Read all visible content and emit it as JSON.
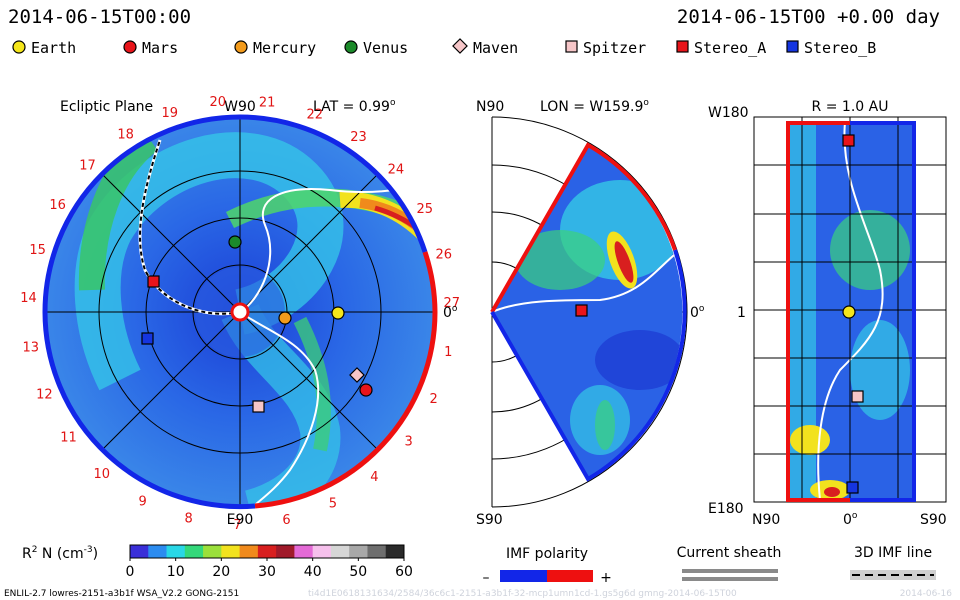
{
  "header": {
    "datetime_left": "2014-06-15T00:00",
    "datetime_right": "2014-06-15T00 +0.00 day"
  },
  "legend": [
    {
      "label": "Earth",
      "shape": "circle",
      "color": "#f5e61b"
    },
    {
      "label": "Mars",
      "shape": "circle",
      "color": "#e8141a"
    },
    {
      "label": "Mercury",
      "shape": "circle",
      "color": "#f39b1c"
    },
    {
      "label": "Venus",
      "shape": "circle",
      "color": "#1b8a2a"
    },
    {
      "label": "Maven",
      "shape": "diamond",
      "color": "#f6c6c8"
    },
    {
      "label": "Spitzer",
      "shape": "square",
      "color": "#f6c6c8"
    },
    {
      "label": "Stereo_A",
      "shape": "square",
      "color": "#e8141a"
    },
    {
      "label": "Stereo_B",
      "shape": "square",
      "color": "#1535e0"
    }
  ],
  "ecliptic": {
    "title": "Ecliptic Plane",
    "top_label": "W90",
    "lat_text": "LAT = 0.99",
    "lat_sup": "o",
    "zero_label": "0",
    "zero_sup": "o",
    "bottom_label": "E90",
    "sector_numbers": [
      "20",
      "21",
      "22",
      "23",
      "24",
      "25",
      "26",
      "27",
      "1",
      "2",
      "3",
      "4",
      "5",
      "6",
      "7",
      "8",
      "9",
      "10",
      "11",
      "12",
      "13",
      "14",
      "15",
      "16",
      "17",
      "18",
      "19"
    ]
  },
  "meridional": {
    "top_left": "N90",
    "lon_text": "LON = W159.9",
    "lon_sup": "o",
    "zero_label": "0",
    "zero_sup": "o",
    "bottom_left": "S90"
  },
  "radial": {
    "title": "R = 1.0 AU",
    "left_top": "W180",
    "left_mid": "1",
    "left_bottom": "E180",
    "bottom_left": "N90",
    "bottom_mid": "0",
    "bottom_mid_sup": "o",
    "bottom_right": "S90"
  },
  "colorbar": {
    "label_main": "R",
    "label_sup": "2",
    "label_rest": " N (cm",
    "label_exp": "-3",
    "label_end": ")",
    "ticks": [
      "0",
      "10",
      "20",
      "30",
      "40",
      "50",
      "60"
    ],
    "colors": [
      "#3a2fd8",
      "#2c8cf0",
      "#29d7e6",
      "#34d87a",
      "#9be03b",
      "#f2e21e",
      "#f08a1c",
      "#d81f1f",
      "#a01a2a",
      "#e46ad6",
      "#f6c0ec",
      "#d6d6d6",
      "#a8a8a8",
      "#6e6e6e",
      "#2a2a2a"
    ]
  },
  "imf": {
    "title": "IMF polarity",
    "minus": "–",
    "plus": "+",
    "negative_color": "#1226e8",
    "positive_color": "#ee1010"
  },
  "current_sheath": {
    "title": "Current sheath"
  },
  "imf_line": {
    "title": "3D IMF line"
  },
  "footer": {
    "left": "ENLIL-2.7 lowres-2151-a3b1f WSA_V2.2 GONG-2151",
    "middle": "ti4d1E0618131634/2584/36c6c1-2151-a3b1f-32-mcp1umn1cd-1.gs5g6d gmng-2014-06-15T00",
    "right": "2014-06-16"
  }
}
